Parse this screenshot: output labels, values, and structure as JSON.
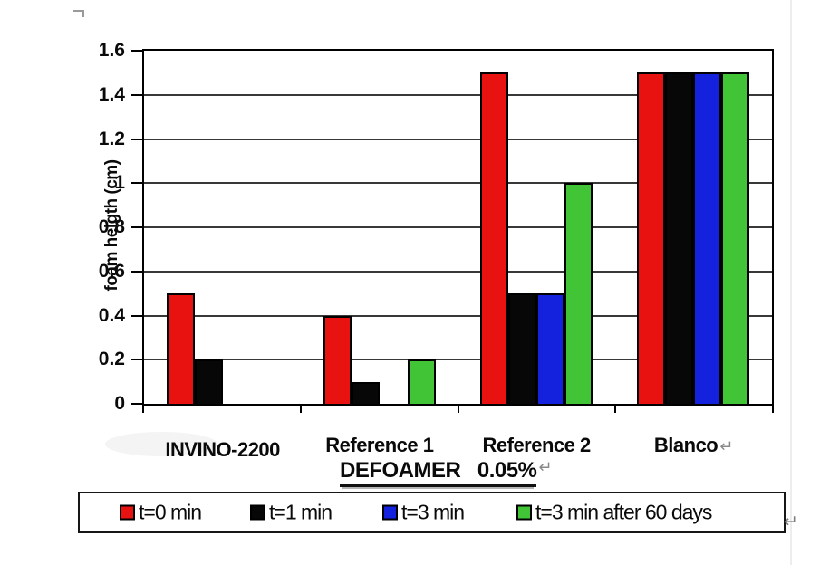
{
  "chart_data": {
    "type": "bar",
    "title": "",
    "ylabel": "foam heigth (cm)",
    "xlabel": "",
    "subtitle_note": "DEFOAMER   0.05%",
    "categories": [
      "INVINO-2200",
      "Reference 1",
      "Reference 2",
      "Blanco"
    ],
    "series": [
      {
        "name": "t=0 min",
        "color": "#e81310",
        "values": [
          0.5,
          0.4,
          1.5,
          1.5
        ]
      },
      {
        "name": "t=1 min",
        "color": "#070707",
        "values": [
          0.2,
          0.1,
          0.5,
          1.5
        ]
      },
      {
        "name": "t=3 min",
        "color": "#1421dd",
        "values": [
          0,
          0,
          0.5,
          1.5
        ]
      },
      {
        "name": "t=3 min after 60 days",
        "color": "#41c536",
        "values": [
          0,
          0.2,
          1.0,
          1.5
        ]
      }
    ],
    "ylim": [
      0,
      1.6
    ],
    "ytick_step": 0.2,
    "yticks_top_to_bottom": [
      "1.6",
      "1.4",
      "1.2",
      "1",
      "0.8",
      "0.6",
      "0.4",
      "0.2",
      "0"
    ],
    "grid": true,
    "legend_position": "bottom-box"
  },
  "marks": {
    "return_mark": "↵",
    "blanco_return_mark": "↵",
    "legend_return_mark": "↵"
  },
  "colors": {
    "frame": "#000000",
    "gridline": "#383838",
    "background": "#ffffff",
    "return_gray": "#8a8a8a"
  }
}
